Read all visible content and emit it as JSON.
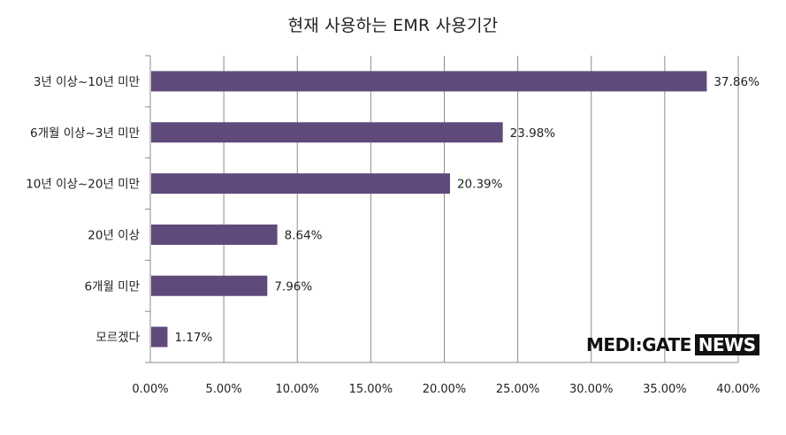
{
  "chart_data": {
    "type": "bar",
    "orientation": "horizontal",
    "title": "현재 사용하는 EMR 사용기간",
    "categories": [
      "3년 이상~10년 미만",
      "6개월 이상~3년 미만",
      "10년 이상~20년 미만",
      "20년 이상",
      "6개월 미만",
      "모르겠다"
    ],
    "values": [
      37.86,
      23.98,
      20.39,
      8.64,
      7.96,
      1.17
    ],
    "value_labels": [
      "37.86%",
      "23.98%",
      "20.39%",
      "8.64%",
      "7.96%",
      "1.17%"
    ],
    "x_ticks": [
      "0.00%",
      "5.00%",
      "10.00%",
      "15.00%",
      "20.00%",
      "25.00%",
      "30.00%",
      "35.00%",
      "40.00%"
    ],
    "xlim": [
      0,
      40
    ],
    "xlabel": "",
    "ylabel": "",
    "grid": "vertical",
    "legend": "none",
    "bar_color": "#604a7b"
  },
  "watermark": {
    "part1": "MEDI:GATE",
    "part2": "NEWS"
  }
}
